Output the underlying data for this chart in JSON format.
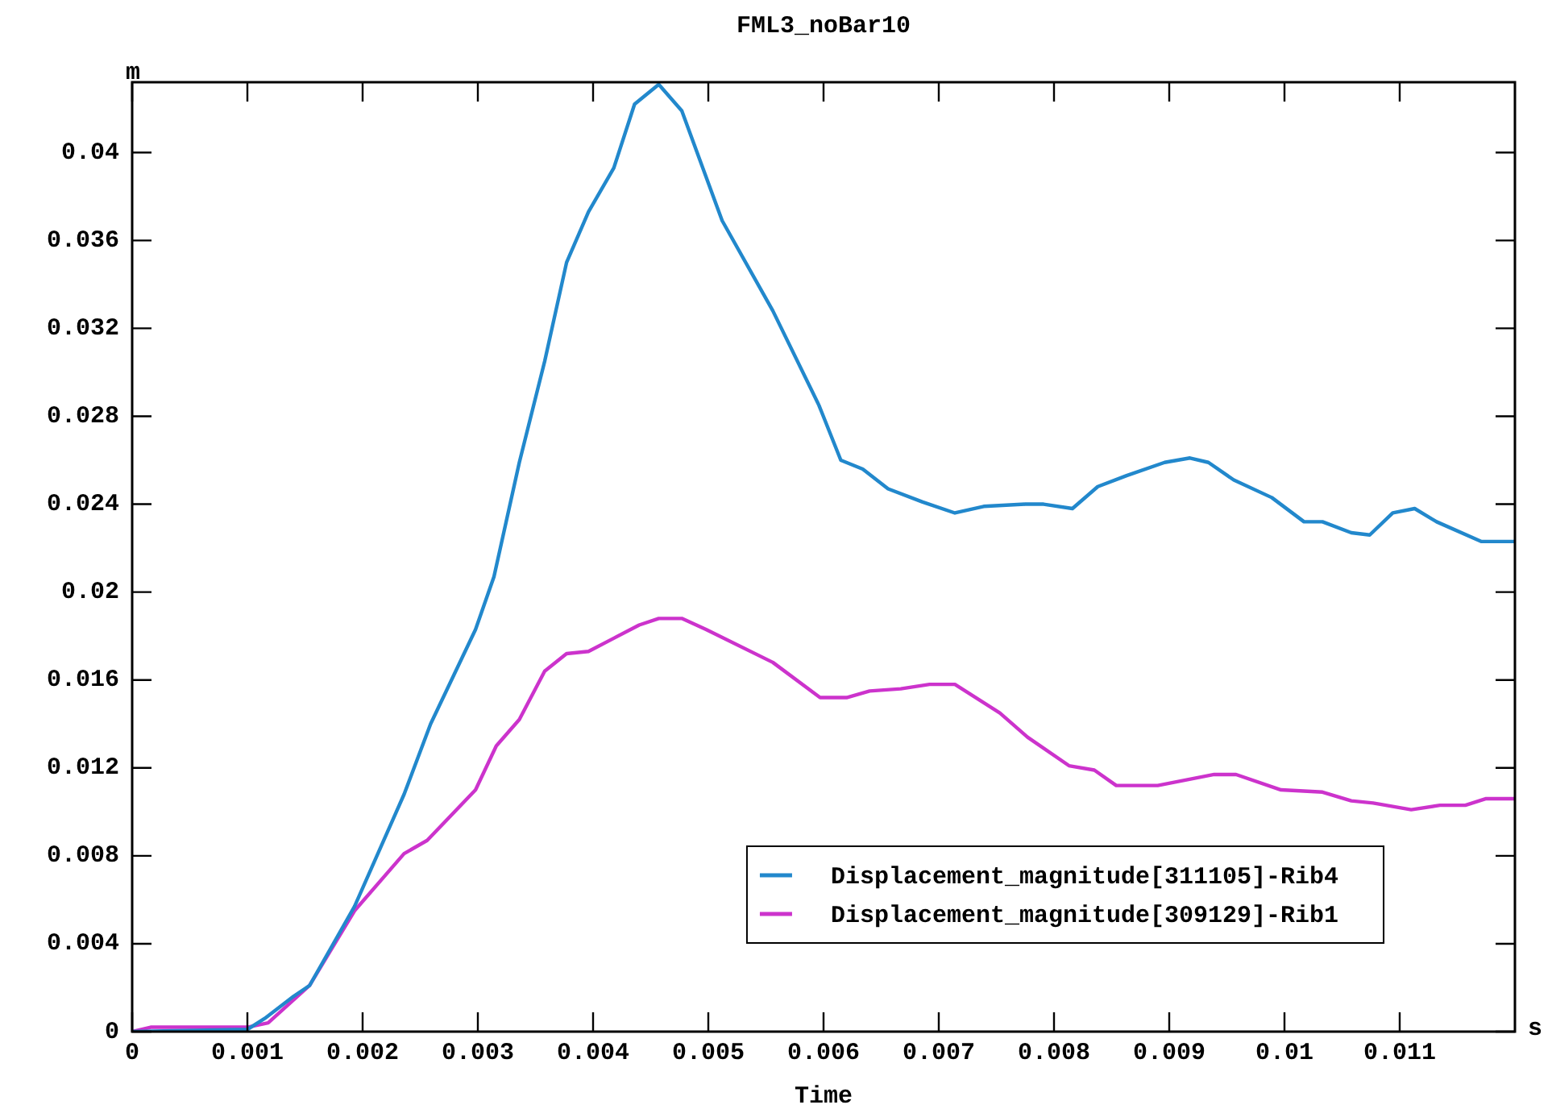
{
  "chart_data": {
    "type": "line",
    "title": "FML3_noBar10",
    "xlabel": "Time",
    "ylabel": "m",
    "annotations": [
      "s"
    ],
    "xlim": [
      0,
      0.012
    ],
    "ylim": [
      0,
      0.0432
    ],
    "xticks": [
      0,
      0.001,
      0.002,
      0.003,
      0.004,
      0.005,
      0.006,
      0.007,
      0.008,
      0.009,
      0.01,
      0.011
    ],
    "yticks": [
      0,
      0.004,
      0.008,
      0.012,
      0.016,
      0.02,
      0.024,
      0.028,
      0.032,
      0.036,
      0.04
    ],
    "grid": false,
    "legend": "bottom",
    "marker": "none",
    "line_style": "solid",
    "series": [
      {
        "name": "Displacement_magnitude[311105]-Rib4",
        "color": "#2288cc",
        "x": [
          0,
          0.001,
          0.00115,
          0.0014,
          0.00154,
          0.00193,
          0.00236,
          0.00259,
          0.00298,
          0.00314,
          0.00336,
          0.00358,
          0.00377,
          0.00396,
          0.00418,
          0.00436,
          0.00457,
          0.00477,
          0.00512,
          0.00556,
          0.00596,
          0.00615,
          0.00634,
          0.00656,
          0.00686,
          0.00714,
          0.00739,
          0.00775,
          0.00791,
          0.00816,
          0.00838,
          0.00863,
          0.00896,
          0.00918,
          0.00934,
          0.00956,
          0.00989,
          0.01017,
          0.01033,
          0.01058,
          0.01074,
          0.01094,
          0.01113,
          0.01132,
          0.01171,
          0.012
        ],
        "values": [
          0,
          0.0001,
          0.0006,
          0.0016,
          0.0021,
          0.0057,
          0.0108,
          0.014,
          0.0183,
          0.0207,
          0.0259,
          0.0305,
          0.035,
          0.0373,
          0.0393,
          0.0422,
          0.0431,
          0.0419,
          0.0369,
          0.0328,
          0.0285,
          0.026,
          0.0256,
          0.0247,
          0.0241,
          0.0236,
          0.0239,
          0.024,
          0.024,
          0.0238,
          0.0248,
          0.0253,
          0.0259,
          0.0261,
          0.0259,
          0.0251,
          0.0243,
          0.0232,
          0.0232,
          0.0227,
          0.0226,
          0.0236,
          0.0238,
          0.0232,
          0.0223,
          0.0223
        ]
      },
      {
        "name": "Displacement_magnitude[309129]-Rib1",
        "color": "#cc33cc",
        "x": [
          0,
          0.00016,
          0.001,
          0.00118,
          0.00154,
          0.00193,
          0.00236,
          0.00256,
          0.00298,
          0.00316,
          0.00336,
          0.00358,
          0.00377,
          0.00396,
          0.00418,
          0.0044,
          0.00457,
          0.00477,
          0.00498,
          0.00556,
          0.00597,
          0.0062,
          0.0064,
          0.00667,
          0.00692,
          0.00714,
          0.00753,
          0.00777,
          0.00813,
          0.00835,
          0.00854,
          0.0089,
          0.00939,
          0.00958,
          0.00997,
          0.01033,
          0.01058,
          0.01077,
          0.0111,
          0.01135,
          0.01157,
          0.01175,
          0.012
        ],
        "values": [
          0,
          0.0002,
          0.0002,
          0.0004,
          0.0021,
          0.0055,
          0.0081,
          0.0087,
          0.011,
          0.013,
          0.0142,
          0.0164,
          0.0172,
          0.0173,
          0.0179,
          0.0185,
          0.0188,
          0.0188,
          0.0183,
          0.0168,
          0.0152,
          0.0152,
          0.0155,
          0.0156,
          0.0158,
          0.0158,
          0.0145,
          0.0134,
          0.0121,
          0.0119,
          0.0112,
          0.0112,
          0.0117,
          0.0117,
          0.011,
          0.0109,
          0.0105,
          0.0104,
          0.0101,
          0.0103,
          0.0103,
          0.0106,
          0.0106
        ]
      }
    ]
  }
}
